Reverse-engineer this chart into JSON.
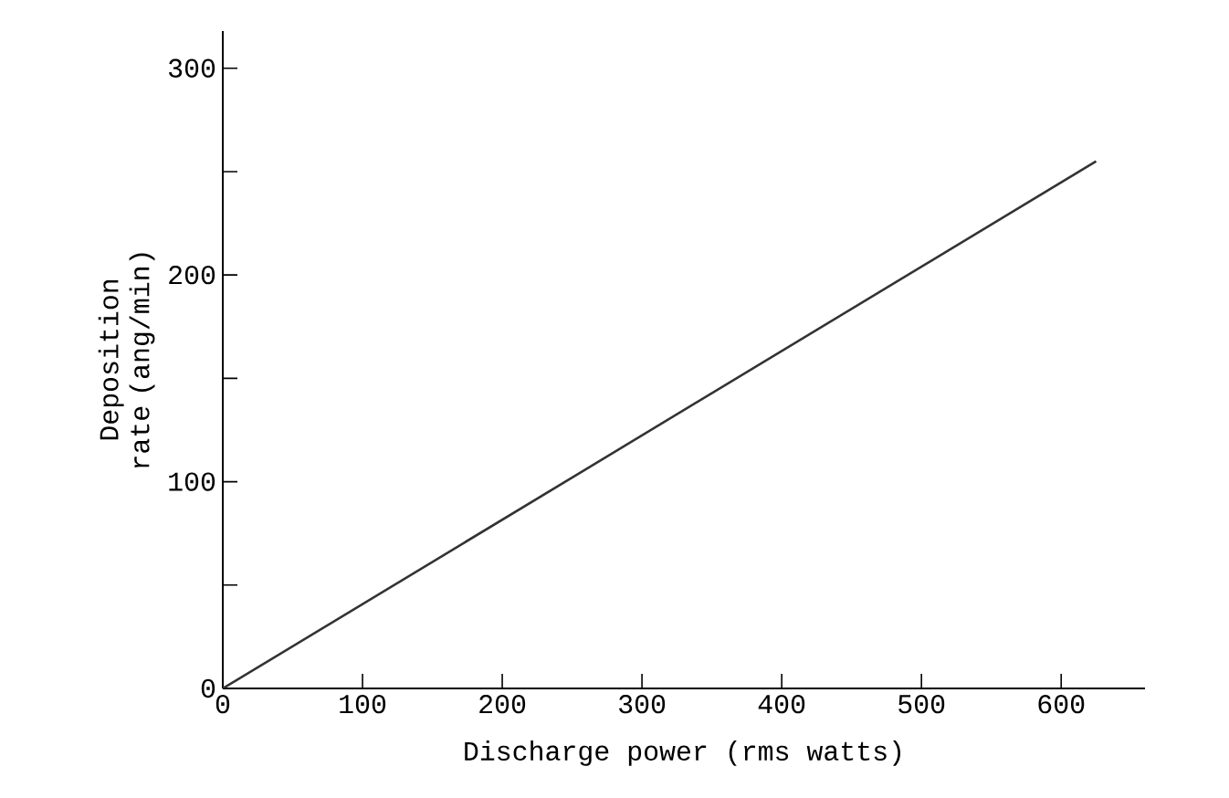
{
  "chart_data": {
    "type": "line",
    "xlabel": "Discharge power (rms watts)",
    "ylabel": "Deposition rate (ang/min)",
    "x": [
      0,
      625
    ],
    "values": [
      0,
      255
    ],
    "color": "#333333",
    "xlim": [
      0,
      660
    ],
    "ylim": [
      0,
      318
    ],
    "xticks": [
      0,
      100,
      200,
      300,
      400,
      500,
      600
    ],
    "yticks": [
      0,
      {
        "value": 50,
        "label": null
      },
      100,
      {
        "value": 150,
        "label": null
      },
      200,
      {
        "value": 250,
        "label": null
      },
      300
    ],
    "grid": false,
    "marker": "none",
    "line_style": "solid"
  }
}
